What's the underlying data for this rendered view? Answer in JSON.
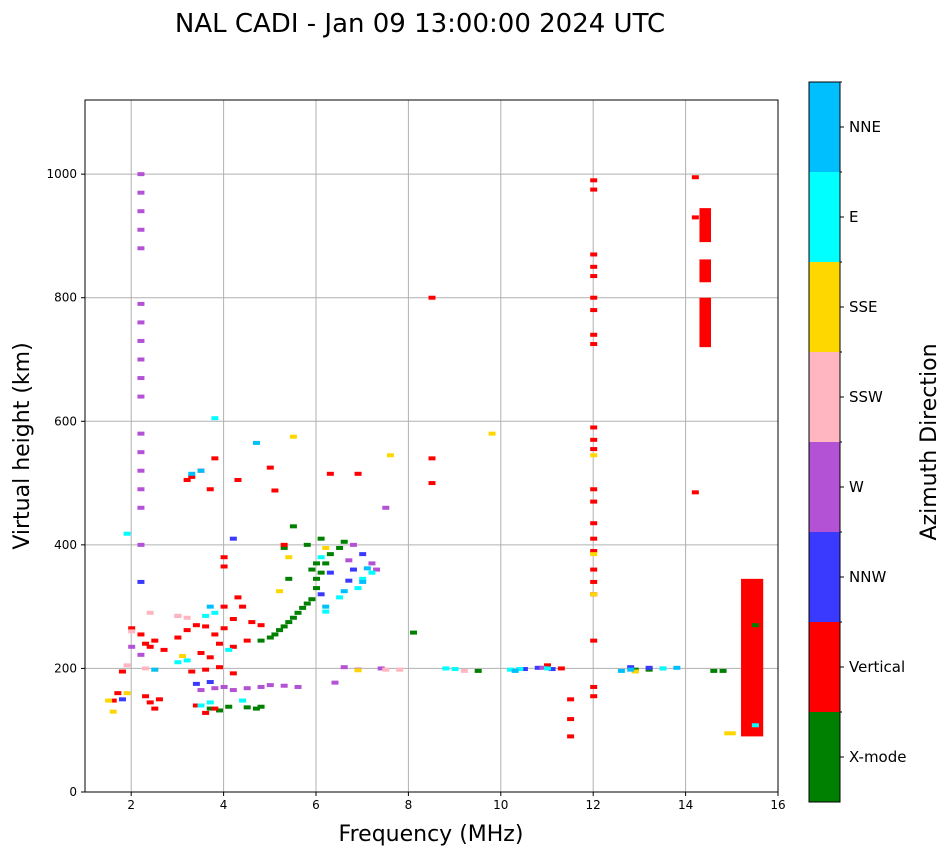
{
  "chart_data": {
    "type": "scatter",
    "title": "NAL CADI - Jan 09 13:00:00 2024 UTC",
    "xlabel": "Frequency (MHz)",
    "ylabel": "Virtual height (km)",
    "xlim": [
      1,
      16
    ],
    "ylim": [
      0,
      1120
    ],
    "xticks": [
      "2",
      "4",
      "6",
      "8",
      "10",
      "12",
      "14",
      "16"
    ],
    "yticks": [
      "0",
      "200",
      "400",
      "600",
      "800",
      "1000"
    ],
    "grid": true,
    "colorbar": {
      "label": "Azimuth Direction",
      "categories": [
        {
          "name": "X-mode",
          "color": "#008000"
        },
        {
          "name": "Vertical",
          "color": "#ff0000"
        },
        {
          "name": "NNW",
          "color": "#3a3aff"
        },
        {
          "name": "W",
          "color": "#b452d6"
        },
        {
          "name": "SSW",
          "color": "#ffb6c1"
        },
        {
          "name": "SSE",
          "color": "#ffd700"
        },
        {
          "name": "E",
          "color": "#00ffff"
        },
        {
          "name": "NNE",
          "color": "#00bfff"
        }
      ]
    },
    "echoes": [
      {
        "name": "X-mode",
        "points": [
          [
            3.7,
            135
          ],
          [
            3.9,
            132
          ],
          [
            4.1,
            138
          ],
          [
            4.5,
            137
          ],
          [
            4.7,
            135
          ],
          [
            4.8,
            138
          ],
          [
            4.8,
            245
          ],
          [
            5.0,
            250
          ],
          [
            5.1,
            255
          ],
          [
            5.2,
            262
          ],
          [
            5.3,
            268
          ],
          [
            5.4,
            275
          ],
          [
            5.5,
            282
          ],
          [
            5.6,
            290
          ],
          [
            5.7,
            298
          ],
          [
            5.8,
            305
          ],
          [
            5.9,
            312
          ],
          [
            6.0,
            330
          ],
          [
            6.0,
            345
          ],
          [
            6.1,
            355
          ],
          [
            6.2,
            370
          ],
          [
            6.3,
            385
          ],
          [
            6.5,
            395
          ],
          [
            6.6,
            405
          ],
          [
            6.0,
            370
          ],
          [
            5.8,
            400
          ],
          [
            5.5,
            430
          ],
          [
            6.1,
            410
          ],
          [
            5.4,
            345
          ],
          [
            5.9,
            360
          ],
          [
            5.3,
            395
          ],
          [
            8.1,
            258
          ],
          [
            9.5,
            196
          ],
          [
            12.9,
            198
          ],
          [
            13.2,
            198
          ],
          [
            14.6,
            196
          ],
          [
            14.8,
            196
          ],
          [
            15.5,
            270
          ]
        ]
      },
      {
        "name": "Vertical",
        "points": [
          [
            1.6,
            148
          ],
          [
            1.7,
            160
          ],
          [
            1.8,
            195
          ],
          [
            2.0,
            265
          ],
          [
            2.2,
            255
          ],
          [
            2.3,
            240
          ],
          [
            2.4,
            235
          ],
          [
            2.5,
            245
          ],
          [
            2.7,
            230
          ],
          [
            2.3,
            155
          ],
          [
            2.4,
            145
          ],
          [
            2.5,
            135
          ],
          [
            2.6,
            150
          ],
          [
            3.0,
            250
          ],
          [
            3.2,
            262
          ],
          [
            3.4,
            270
          ],
          [
            3.6,
            268
          ],
          [
            3.8,
            255
          ],
          [
            3.9,
            240
          ],
          [
            4.2,
            235
          ],
          [
            3.5,
            225
          ],
          [
            3.7,
            218
          ],
          [
            4.0,
            265
          ],
          [
            4.2,
            280
          ],
          [
            4.4,
            300
          ],
          [
            4.0,
            300
          ],
          [
            4.5,
            245
          ],
          [
            4.6,
            275
          ],
          [
            4.3,
            315
          ],
          [
            4.8,
            270
          ],
          [
            3.3,
            195
          ],
          [
            3.6,
            198
          ],
          [
            3.9,
            202
          ],
          [
            4.2,
            192
          ],
          [
            3.8,
            135
          ],
          [
            3.6,
            128
          ],
          [
            3.4,
            140
          ],
          [
            3.5,
            520
          ],
          [
            3.8,
            540
          ],
          [
            3.3,
            510
          ],
          [
            3.7,
            490
          ],
          [
            3.2,
            505
          ],
          [
            4.3,
            505
          ],
          [
            4.0,
            380
          ],
          [
            4.0,
            365
          ],
          [
            5.0,
            525
          ],
          [
            5.1,
            488
          ],
          [
            5.3,
            400
          ],
          [
            6.3,
            515
          ],
          [
            6.9,
            515
          ],
          [
            8.5,
            800
          ],
          [
            8.5,
            540
          ],
          [
            8.5,
            500
          ],
          [
            12.0,
            990
          ],
          [
            12.0,
            975
          ],
          [
            12.0,
            870
          ],
          [
            12.0,
            850
          ],
          [
            12.0,
            835
          ],
          [
            12.0,
            800
          ],
          [
            12.0,
            780
          ],
          [
            12.0,
            740
          ],
          [
            12.0,
            725
          ],
          [
            12.0,
            590
          ],
          [
            12.0,
            570
          ],
          [
            12.0,
            555
          ],
          [
            12.0,
            490
          ],
          [
            12.0,
            470
          ],
          [
            12.0,
            435
          ],
          [
            12.0,
            410
          ],
          [
            12.0,
            390
          ],
          [
            12.0,
            360
          ],
          [
            12.0,
            340
          ],
          [
            12.0,
            320
          ],
          [
            12.0,
            245
          ],
          [
            12.0,
            170
          ],
          [
            12.0,
            155
          ],
          [
            11.5,
            150
          ],
          [
            11.5,
            118
          ],
          [
            11.5,
            90
          ],
          [
            11.3,
            200
          ],
          [
            11.0,
            205
          ],
          [
            14.2,
            995
          ],
          [
            14.2,
            930
          ],
          [
            14.2,
            485
          ],
          [
            13.5,
            200
          ]
        ]
      },
      {
        "name": "NNW",
        "points": [
          [
            1.8,
            150
          ],
          [
            2.2,
            340
          ],
          [
            3.4,
            175
          ],
          [
            3.7,
            178
          ],
          [
            4.2,
            410
          ],
          [
            6.1,
            320
          ],
          [
            6.3,
            355
          ],
          [
            6.7,
            342
          ],
          [
            7.0,
            385
          ],
          [
            6.8,
            360
          ],
          [
            10.5,
            199
          ],
          [
            10.8,
            201
          ],
          [
            11.1,
            199
          ],
          [
            12.8,
            202
          ],
          [
            13.2,
            201
          ]
        ]
      },
      {
        "name": "W",
        "points": [
          [
            2.2,
            1000
          ],
          [
            2.2,
            970
          ],
          [
            2.2,
            940
          ],
          [
            2.2,
            910
          ],
          [
            2.2,
            880
          ],
          [
            2.2,
            790
          ],
          [
            2.2,
            760
          ],
          [
            2.2,
            730
          ],
          [
            2.2,
            700
          ],
          [
            2.2,
            670
          ],
          [
            2.2,
            640
          ],
          [
            2.2,
            580
          ],
          [
            2.2,
            550
          ],
          [
            2.2,
            520
          ],
          [
            2.2,
            490
          ],
          [
            2.2,
            460
          ],
          [
            2.2,
            400
          ],
          [
            3.5,
            165
          ],
          [
            3.8,
            168
          ],
          [
            4.0,
            170
          ],
          [
            4.2,
            165
          ],
          [
            4.5,
            168
          ],
          [
            4.8,
            170
          ],
          [
            5.0,
            173
          ],
          [
            5.3,
            172
          ],
          [
            5.6,
            170
          ],
          [
            6.4,
            177
          ],
          [
            6.7,
            375
          ],
          [
            6.8,
            400
          ],
          [
            7.2,
            370
          ],
          [
            7.3,
            360
          ],
          [
            7.5,
            460
          ],
          [
            2.0,
            235
          ],
          [
            2.2,
            222
          ],
          [
            3.0,
            285
          ],
          [
            6.6,
            202
          ],
          [
            6.9,
            198
          ],
          [
            7.4,
            200
          ],
          [
            10.9,
            201
          ]
        ]
      },
      {
        "name": "SSW",
        "points": [
          [
            2.4,
            290
          ],
          [
            2.0,
            260
          ],
          [
            1.9,
            205
          ],
          [
            2.3,
            200
          ],
          [
            3.0,
            285
          ],
          [
            3.2,
            282
          ],
          [
            7.5,
            198
          ],
          [
            7.8,
            198
          ],
          [
            9.2,
            196
          ]
        ]
      },
      {
        "name": "SSE",
        "points": [
          [
            1.6,
            130
          ],
          [
            1.5,
            148
          ],
          [
            1.9,
            160
          ],
          [
            2.5,
            198
          ],
          [
            3.1,
            220
          ],
          [
            5.5,
            575
          ],
          [
            5.2,
            325
          ],
          [
            6.9,
            197
          ],
          [
            7.6,
            545
          ],
          [
            9.8,
            580
          ],
          [
            12.0,
            320
          ],
          [
            12.0,
            385
          ],
          [
            12.0,
            545
          ],
          [
            12.9,
            195
          ],
          [
            14.9,
            95
          ],
          [
            15.0,
            95
          ],
          [
            5.4,
            380
          ],
          [
            6.2,
            395
          ]
        ]
      },
      {
        "name": "E",
        "points": [
          [
            1.9,
            418
          ],
          [
            3.8,
            605
          ],
          [
            3.0,
            210
          ],
          [
            3.2,
            213
          ],
          [
            3.6,
            285
          ],
          [
            3.8,
            290
          ],
          [
            4.1,
            230
          ],
          [
            4.4,
            148
          ],
          [
            6.1,
            380
          ],
          [
            6.2,
            292
          ],
          [
            6.5,
            315
          ],
          [
            6.9,
            330
          ],
          [
            7.0,
            345
          ],
          [
            7.2,
            355
          ],
          [
            3.5,
            140
          ],
          [
            3.7,
            145
          ],
          [
            8.8,
            200
          ],
          [
            9.0,
            199
          ],
          [
            10.2,
            198
          ],
          [
            10.4,
            199
          ],
          [
            11.0,
            200
          ],
          [
            13.5,
            200
          ],
          [
            15.5,
            108
          ]
        ]
      },
      {
        "name": "NNE",
        "points": [
          [
            2.5,
            198
          ],
          [
            3.3,
            515
          ],
          [
            3.5,
            520
          ],
          [
            4.7,
            565
          ],
          [
            6.2,
            300
          ],
          [
            6.6,
            325
          ],
          [
            7.0,
            340
          ],
          [
            7.1,
            362
          ],
          [
            3.7,
            300
          ],
          [
            10.3,
            196
          ],
          [
            12.6,
            196
          ],
          [
            12.8,
            198
          ],
          [
            13.8,
            201
          ]
        ]
      }
    ],
    "bars": [
      {
        "name": "Vertical",
        "x": [
          14.3,
          14.55
        ],
        "y": [
          890,
          945
        ]
      },
      {
        "name": "Vertical",
        "x": [
          14.3,
          14.55
        ],
        "y": [
          825,
          862
        ]
      },
      {
        "name": "Vertical",
        "x": [
          14.3,
          14.55
        ],
        "y": [
          720,
          800
        ]
      },
      {
        "name": "Vertical",
        "x": [
          15.2,
          15.68
        ],
        "y": [
          90,
          345
        ]
      }
    ]
  }
}
